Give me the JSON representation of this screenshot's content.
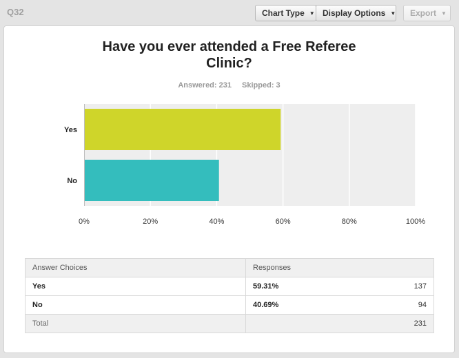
{
  "header": {
    "question_number": "Q32",
    "chart_type_label": "Chart Type",
    "display_options_label": "Display Options",
    "export_label": "Export"
  },
  "question": {
    "title_line1": "Have you ever attended a Free Referee",
    "title_line2": "Clinic?",
    "answered": "Answered: 231",
    "skipped": "Skipped: 3"
  },
  "chart_data": {
    "type": "bar",
    "orientation": "horizontal",
    "categories": [
      "Yes",
      "No"
    ],
    "values": [
      59.31,
      40.69
    ],
    "colors": [
      "#cfd52a",
      "#34bdbd"
    ],
    "xlim": [
      0,
      100
    ],
    "x_ticks": [
      "0%",
      "20%",
      "40%",
      "60%",
      "80%",
      "100%"
    ],
    "grid": true
  },
  "table": {
    "headers": [
      "Answer Choices",
      "Responses"
    ],
    "rows": [
      {
        "choice": "Yes",
        "percent": "59.31%",
        "count": "137"
      },
      {
        "choice": "No",
        "percent": "40.69%",
        "count": "94"
      }
    ],
    "total_label": "Total",
    "total_count": "231"
  }
}
